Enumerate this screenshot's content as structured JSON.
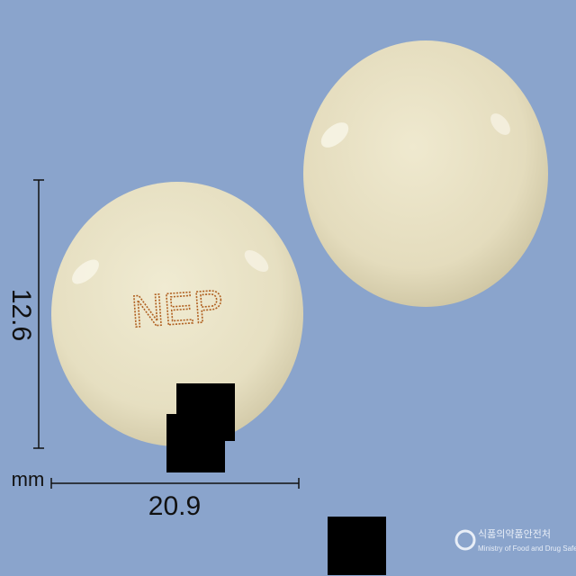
{
  "imprint": "NEP",
  "height_label": "12.6",
  "unit_label": "mm",
  "width_label": "20.9",
  "logo": {
    "korean": "식품의약품안전처",
    "english": "Ministry of Food and Drug Safety"
  }
}
